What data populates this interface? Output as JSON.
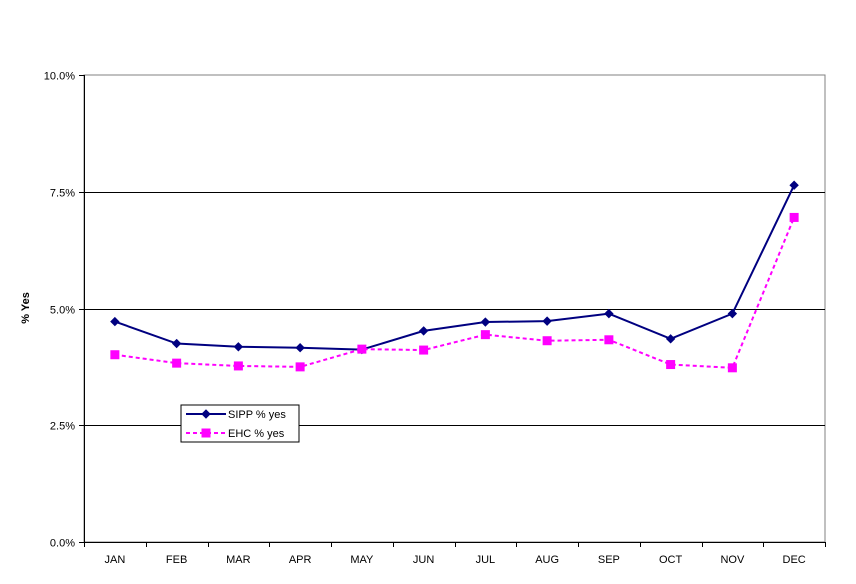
{
  "chart_data": {
    "type": "line",
    "title": "",
    "xlabel": "",
    "ylabel": "% Yes",
    "categories": [
      "JAN",
      "FEB",
      "MAR",
      "APR",
      "MAY",
      "JUN",
      "JUL",
      "AUG",
      "SEP",
      "OCT",
      "NOV",
      "DEC"
    ],
    "y_ticks": [
      "0.0%",
      "2.5%",
      "5.0%",
      "7.5%",
      "10.0%"
    ],
    "ylim": [
      0,
      10
    ],
    "grid": "horizontal",
    "legend_position": "lower-left",
    "series": [
      {
        "name": "SIPP % yes",
        "color": "#000080",
        "line_style": "solid",
        "marker": "diamond",
        "values": [
          4.72,
          4.25,
          4.18,
          4.16,
          4.12,
          4.52,
          4.71,
          4.73,
          4.89,
          4.35,
          4.89,
          7.64
        ]
      },
      {
        "name": "EHC % yes",
        "color": "#ff00ff",
        "line_style": "dashed",
        "marker": "square",
        "values": [
          4.01,
          3.83,
          3.77,
          3.75,
          4.13,
          4.11,
          4.44,
          4.31,
          4.33,
          3.8,
          3.73,
          6.95
        ]
      }
    ]
  }
}
